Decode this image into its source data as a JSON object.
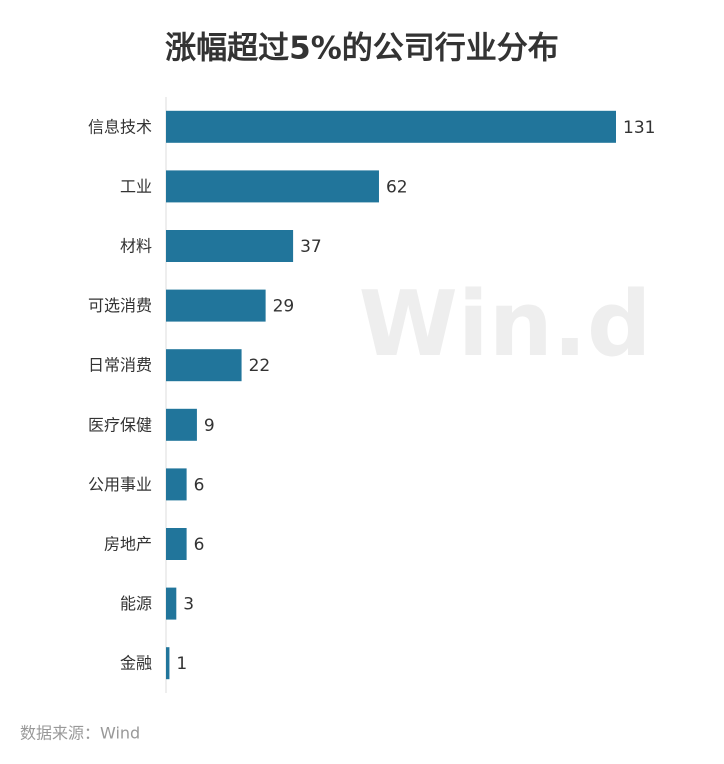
{
  "chart_data": {
    "type": "barh",
    "title": "涨幅超过5%的公司行业分布",
    "categories": [
      "信息技术",
      "工业",
      "材料",
      "可选消费",
      "日常消费",
      "医疗保健",
      "公用事业",
      "房地产",
      "能源",
      "金融"
    ],
    "values": [
      131,
      62,
      37,
      29,
      22,
      9,
      6,
      6,
      3,
      1
    ],
    "color": "#21759b",
    "source": "数据来源：Wind",
    "watermark": "Win.d"
  }
}
